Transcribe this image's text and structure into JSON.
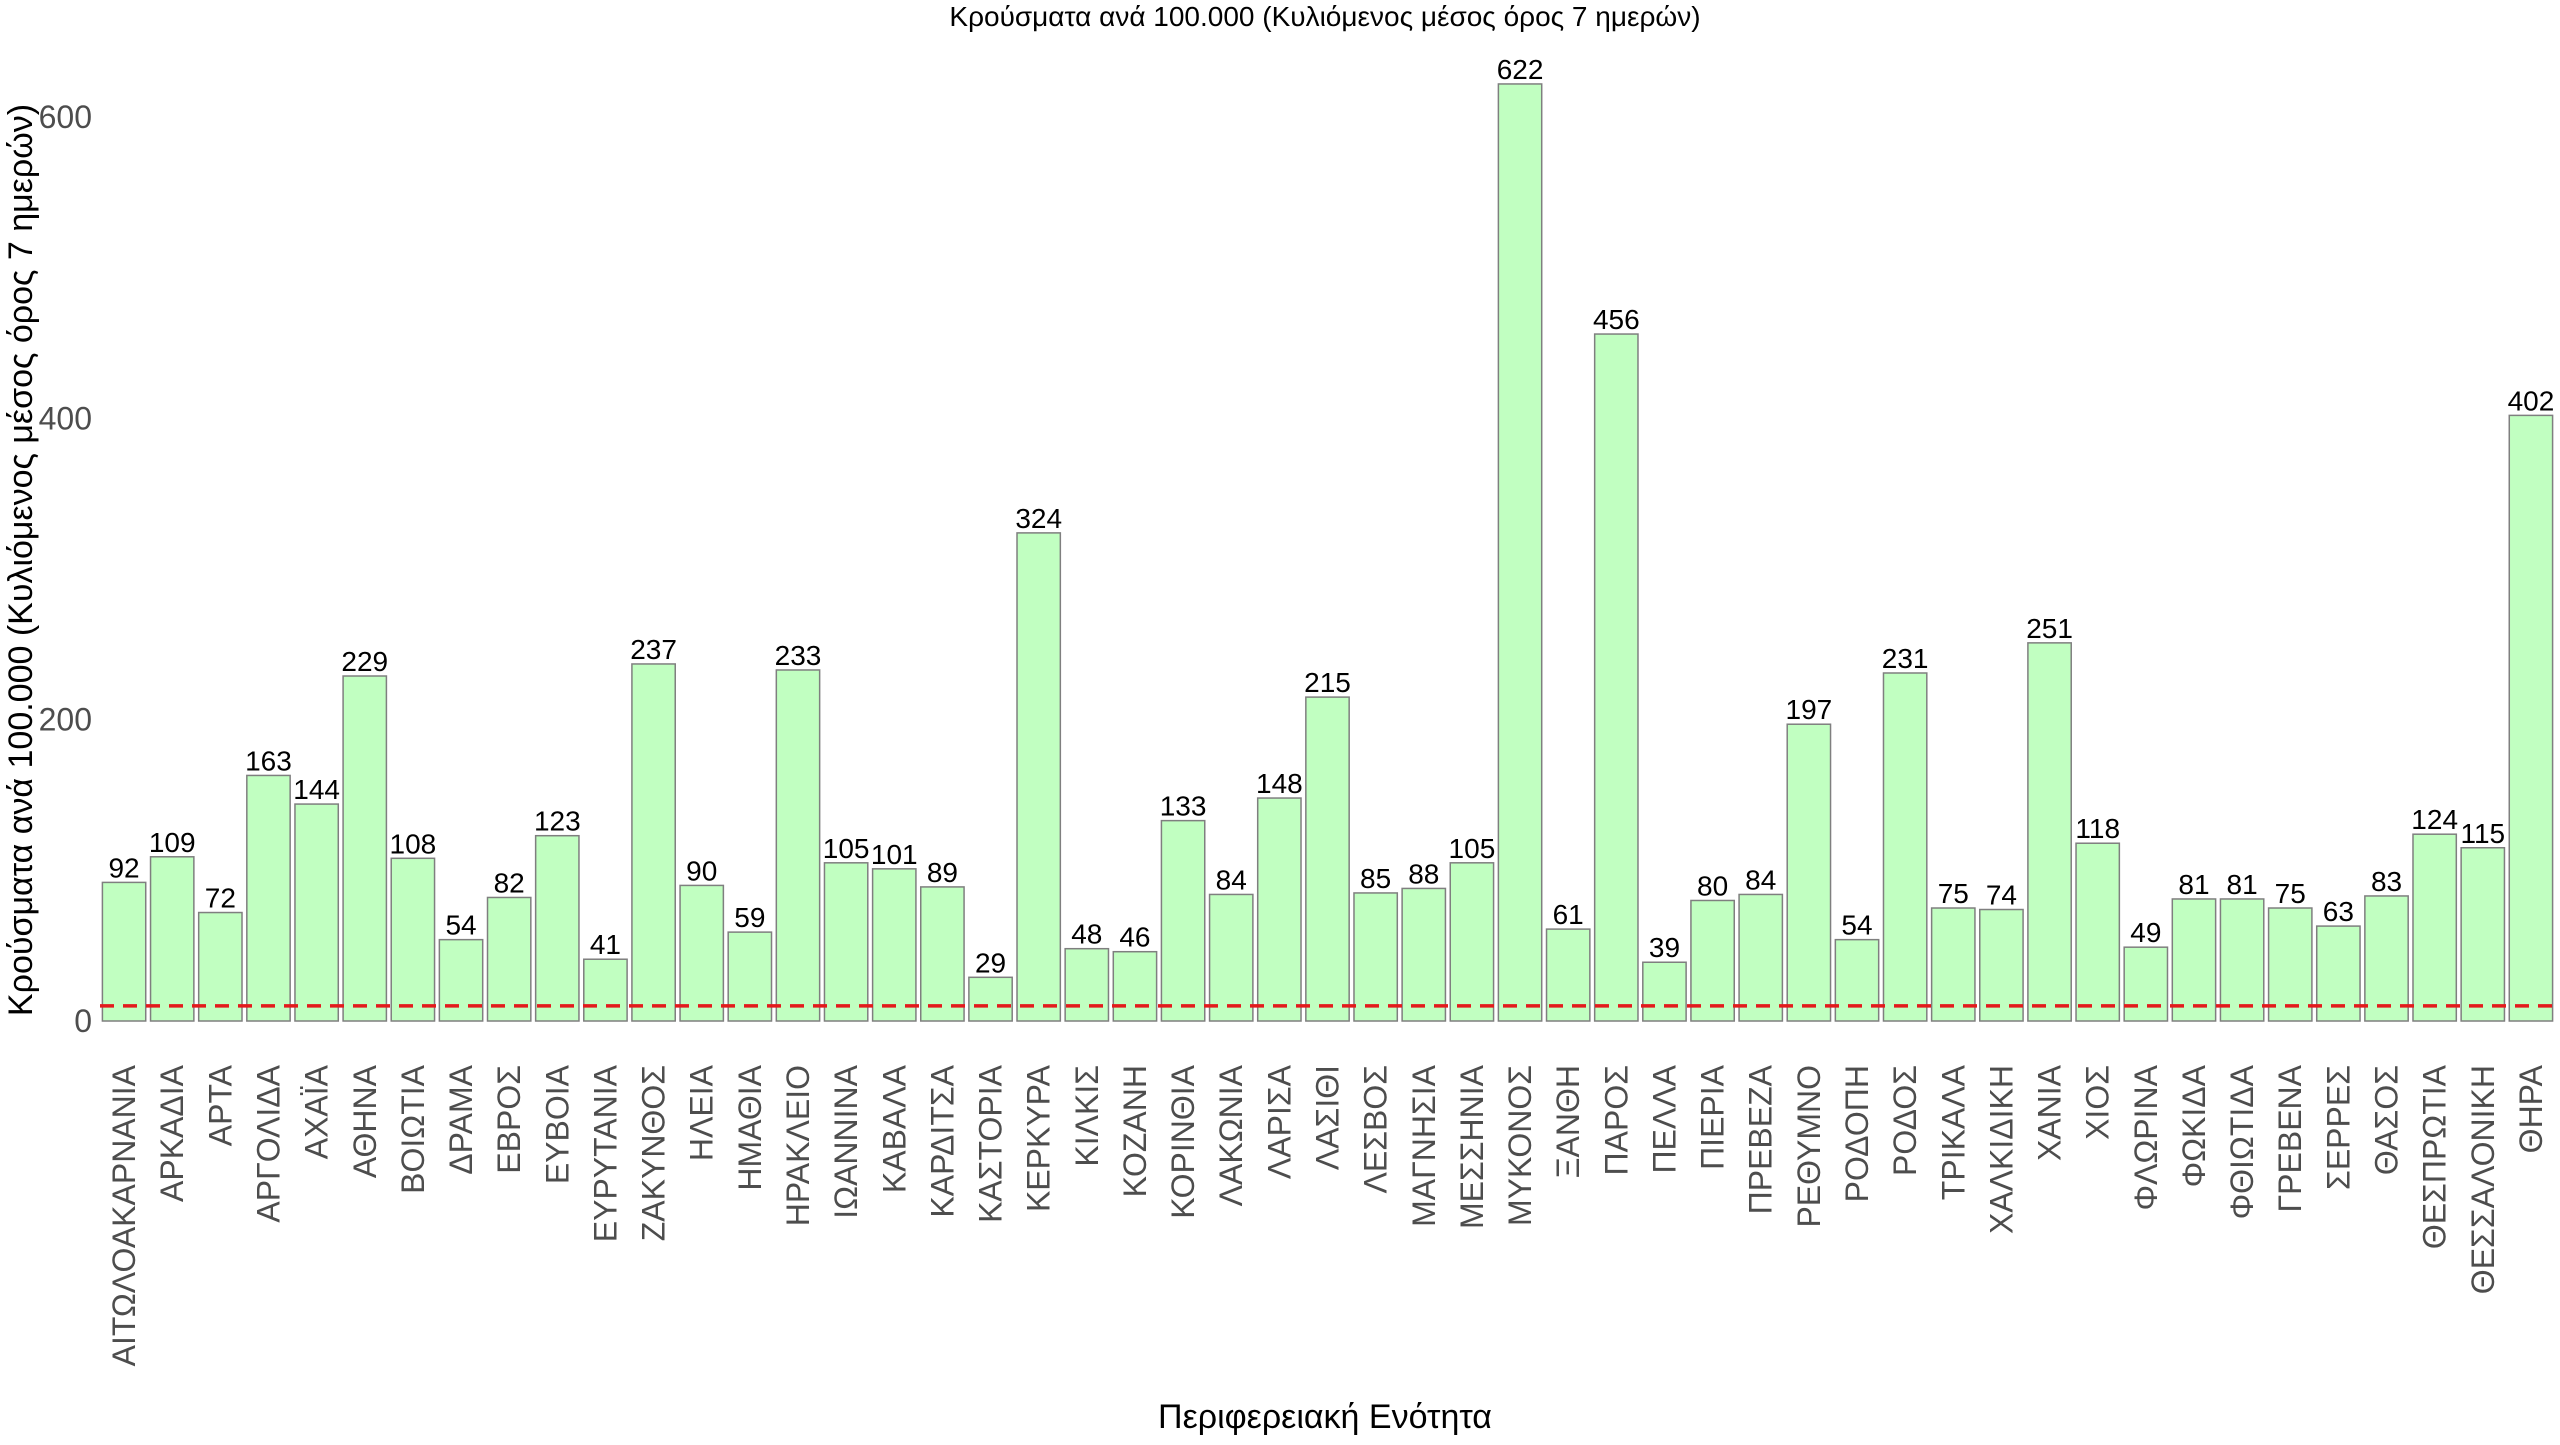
{
  "chart_data": {
    "type": "bar",
    "title": "Κρούσματα ανά 100.000 (Κυλιόμενος μέσος όρος 7 ημερών)",
    "xlabel": "Περιφερειακή Ενότητα",
    "ylabel": "Κρούσματα ανά 100.000 (Κυλιόμενος μέσος όρος 7 ημερών)",
    "ylim": [
      0,
      650
    ],
    "yticks": [
      0,
      200,
      400,
      600
    ],
    "grid": false,
    "reference_line": {
      "value": 10,
      "color": "#e31a1c",
      "style": "dashed"
    },
    "bar_fill": "#c1ffc1",
    "bar_stroke": "#7f7f7f",
    "categories": [
      "ΑΙΤΩΛΟΑΚΑΡΝΑΝΙΑ",
      "ΑΡΚΑΔΙΑ",
      "ΑΡΤΑ",
      "ΑΡΓΟΛΙΔΑ",
      "ΑΧΑΪΑ",
      "ΑΘΗΝΑ",
      "ΒΟΙΩΤΙΑ",
      "ΔΡΑΜΑ",
      "ΕΒΡΟΣ",
      "ΕΥΒΟΙΑ",
      "ΕΥΡΥΤΑΝΙΑ",
      "ΖΑΚΥΝΘΟΣ",
      "ΗΛΕΙΑ",
      "ΗΜΑΘΙΑ",
      "ΗΡΑΚΛΕΙΟ",
      "ΙΩΑΝΝΙΝΑ",
      "ΚΑΒΑΛΑ",
      "ΚΑΡΔΙΤΣΑ",
      "ΚΑΣΤΟΡΙΑ",
      "ΚΕΡΚΥΡΑ",
      "ΚΙΛΚΙΣ",
      "ΚΟΖΑΝΗ",
      "ΚΟΡΙΝΘΙΑ",
      "ΛΑΚΩΝΙΑ",
      "ΛΑΡΙΣΑ",
      "ΛΑΣΙΘΙ",
      "ΛΕΣΒΟΣ",
      "ΜΑΓΝΗΣΙΑ",
      "ΜΕΣΣΗΝΙΑ",
      "ΜΥΚΟΝΟΣ",
      "ΞΑΝΘΗ",
      "ΠΑΡΟΣ",
      "ΠΕΛΛΑ",
      "ΠΙΕΡΙΑ",
      "ΠΡΕΒΕΖΑ",
      "ΡΕΘΥΜΝΟ",
      "ΡΟΔΟΠΗ",
      "ΡΟΔΟΣ",
      "ΤΡΙΚΑΛΑ",
      "ΧΑΛΚΙΔΙΚΗ",
      "ΧΑΝΙΑ",
      "ΧΙΟΣ",
      "ΦΛΩΡΙΝΑ",
      "ΦΩΚΙΔΑ",
      "ΦΘΙΩΤΙΔΑ",
      "ΓΡΕΒΕΝΑ",
      "ΣΕΡΡΕΣ",
      "ΘΑΣΟΣ",
      "ΘΕΣΠΡΩΤΙΑ",
      "ΘΕΣΣΑΛΟΝΙΚΗ",
      "ΘΗΡΑ"
    ],
    "values": [
      92,
      109,
      72,
      163,
      144,
      229,
      108,
      54,
      82,
      123,
      41,
      237,
      90,
      59,
      233,
      105,
      101,
      89,
      29,
      324,
      48,
      46,
      133,
      84,
      148,
      215,
      85,
      88,
      105,
      622,
      61,
      456,
      39,
      80,
      84,
      197,
      54,
      231,
      75,
      74,
      251,
      118,
      49,
      81,
      81,
      75,
      63,
      83,
      124,
      115,
      402
    ]
  }
}
